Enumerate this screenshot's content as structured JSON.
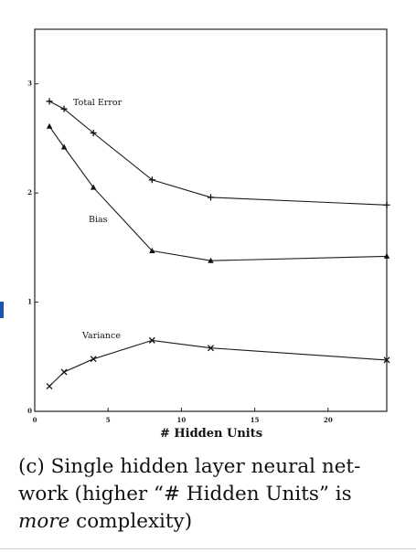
{
  "chart_data": {
    "type": "line",
    "xlabel": "# Hidden Units",
    "ylabel": "",
    "xlim": [
      0,
      24
    ],
    "ylim": [
      0,
      3.5
    ],
    "xticks": [
      0,
      5,
      10,
      15,
      20
    ],
    "yticks": [
      0,
      1,
      2,
      3
    ],
    "grid": false,
    "x": [
      1,
      2,
      4,
      8,
      12,
      24
    ],
    "series": [
      {
        "name": "Total Error",
        "marker": "plus",
        "values": [
          2.84,
          2.77,
          2.55,
          2.12,
          1.96,
          1.89
        ]
      },
      {
        "name": "Bias",
        "marker": "triangle",
        "values": [
          2.61,
          2.42,
          2.05,
          1.47,
          1.38,
          1.42
        ]
      },
      {
        "name": "Variance",
        "marker": "x",
        "values": [
          0.23,
          0.36,
          0.48,
          0.65,
          0.58,
          0.47
        ]
      }
    ]
  },
  "caption": {
    "prefix": "(c) Single hidden layer neural net-",
    "line2": "work (higher “# Hidden Units” is",
    "emphasis": "more",
    "suffix": " complexity)"
  }
}
